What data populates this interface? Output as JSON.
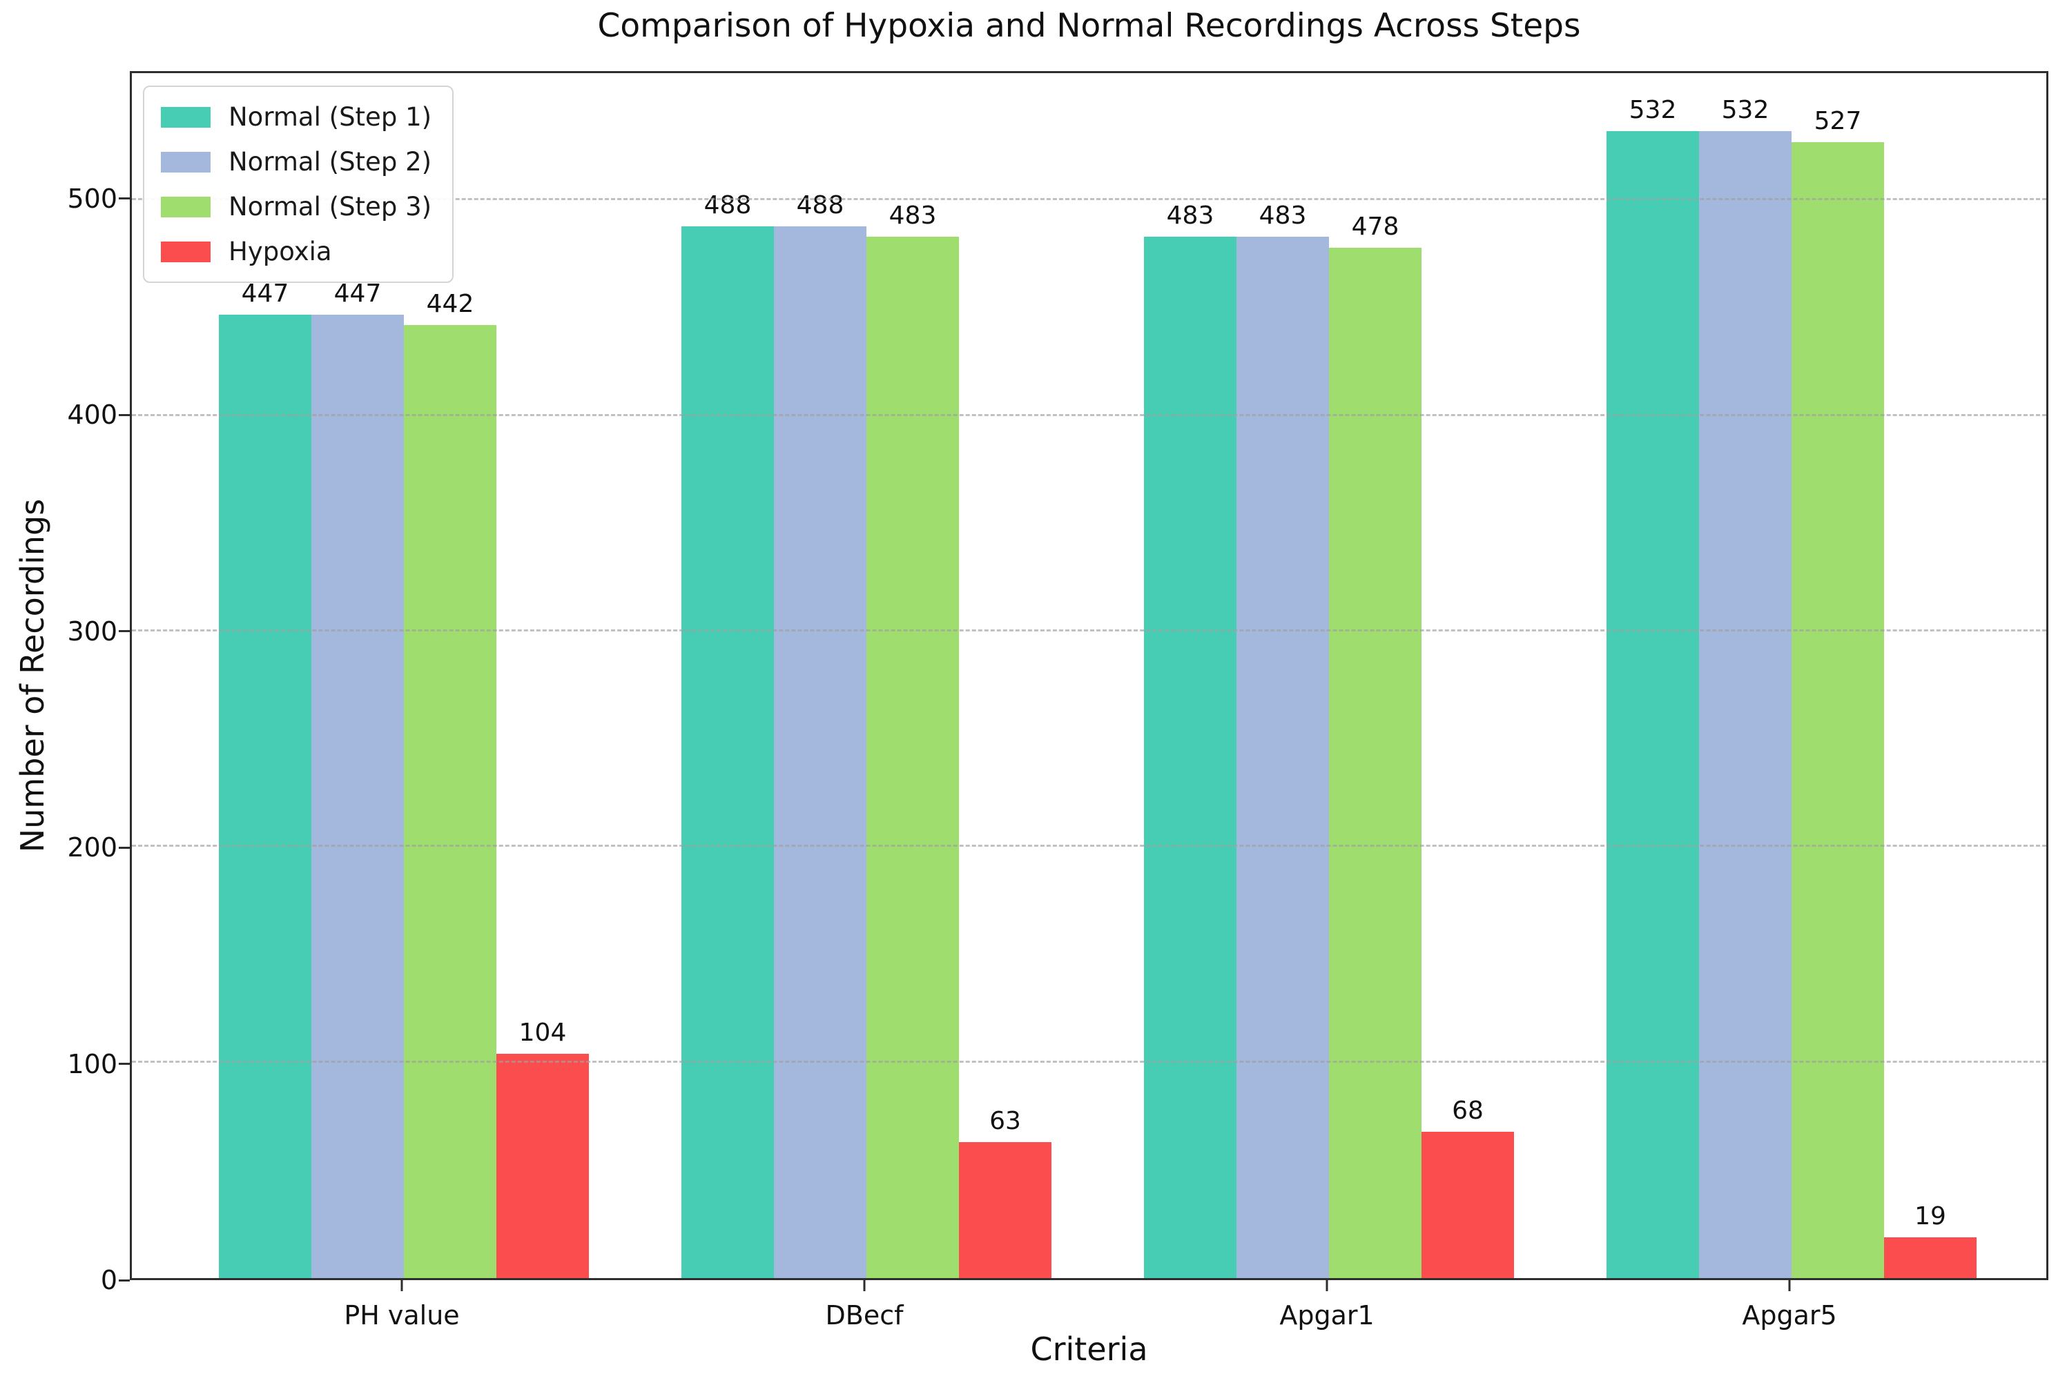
{
  "chart_data": {
    "type": "bar",
    "title": "Comparison of Hypoxia and Normal Recordings Across Steps",
    "xlabel": "Criteria",
    "ylabel": "Number of Recordings",
    "categories": [
      "PH value",
      "DBecf",
      "Apgar1",
      "Apgar5"
    ],
    "series": [
      {
        "name": "Normal (Step 1)",
        "color": "#47CDB4",
        "values": [
          447,
          488,
          483,
          532
        ]
      },
      {
        "name": "Normal (Step 2)",
        "color": "#A3B8DC",
        "values": [
          447,
          488,
          483,
          532
        ]
      },
      {
        "name": "Normal (Step 3)",
        "color": "#9EDD6E",
        "values": [
          442,
          483,
          478,
          527
        ]
      },
      {
        "name": "Hypoxia",
        "color": "#FB4D4D",
        "values": [
          104,
          63,
          68,
          19
        ]
      }
    ],
    "yticks": [
      0,
      100,
      200,
      300,
      400,
      500
    ],
    "ylim": [
      0,
      559
    ],
    "grid": "horizontal-dashed",
    "grid_color": "#a0a0a0",
    "frame_color": "#2e2e2e",
    "legend_position": "upper-left",
    "value_labels_shown": true
  }
}
